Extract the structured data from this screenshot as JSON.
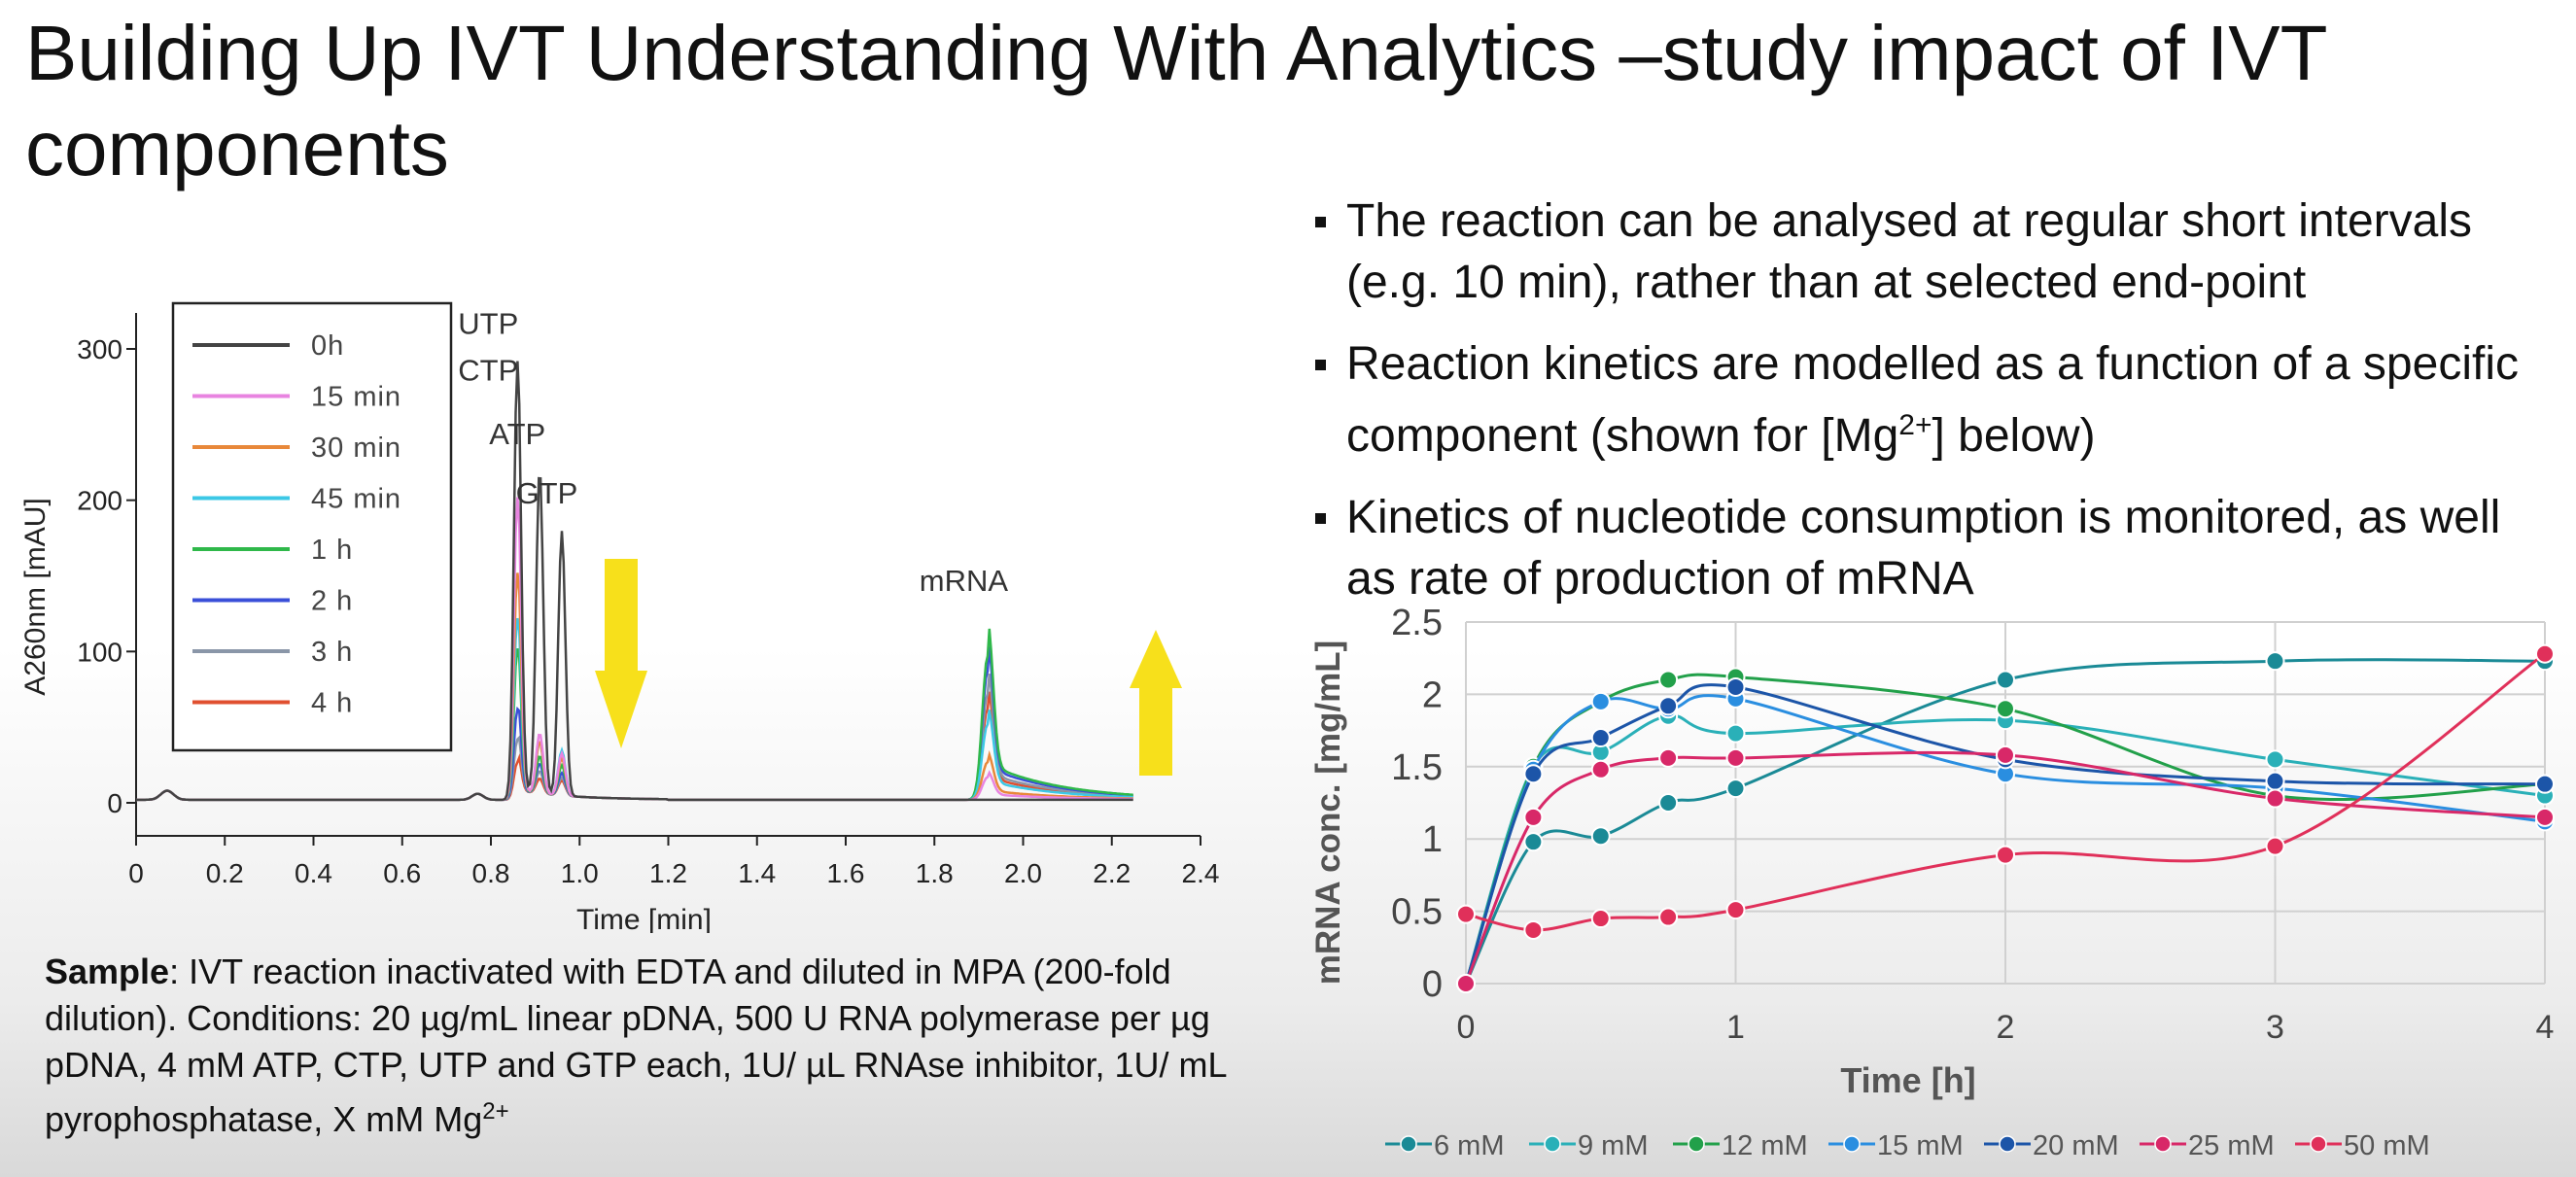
{
  "slide": {
    "title": "Building Up IVT Understanding With Analytics –study impact of IVT components",
    "bullets": [
      {
        "pre": "The reaction can be analysed at regular short intervals (e.g. 10 min), rather than at selected end-point",
        "sup": "",
        "post": ""
      },
      {
        "pre": "Reaction kinetics are modelled as a function of a specific component (shown for [Mg",
        "sup": "2+",
        "post": "] below)"
      },
      {
        "pre": "Kinetics of nucleotide consumption is monitored, as well as rate of production of mRNA",
        "sup": "",
        "post": ""
      }
    ],
    "sample": {
      "label": "Sample",
      "text": ": IVT reaction inactivated with EDTA and diluted in MPA (200-fold dilution). Conditions: 20 µg/mL linear pDNA, 500 U RNA polymerase  per µg pDNA, 4 mM ATP, CTP, UTP and GTP each, 1U/ µL RNAse inhibitor, 1U/ mL pyrophosphatase,  X mM Mg",
      "sup": "2+"
    },
    "colors": {
      "arrow": "#f7e01b"
    }
  },
  "chart_data": [
    {
      "type": "line",
      "xlabel": "Time [min]",
      "ylabel": "A260nm [mAU]",
      "xlim": [
        0,
        2.4
      ],
      "ylim": [
        0,
        300
      ],
      "x_ticks": [
        "0",
        "0.2",
        "0.4",
        "0.6",
        "0.8",
        "1.0",
        "1.2",
        "1.4",
        "1.6",
        "1.8",
        "2.0",
        "2.2",
        "2.4"
      ],
      "y_ticks": [
        "0",
        "100",
        "200",
        "300"
      ],
      "legend_position": "top-left",
      "peak_labels": [
        {
          "text": "UTP",
          "x": 0.84,
          "y": 310
        },
        {
          "text": "CTP",
          "x": 0.84,
          "y": 279
        },
        {
          "text": "ATP",
          "x": 0.91,
          "y": 237
        },
        {
          "text": "GTP",
          "x": 0.97,
          "y": 198
        },
        {
          "text": "mRNA",
          "x": 1.88,
          "y": 140
        }
      ],
      "series": [
        {
          "name": "0h",
          "color": "#444444",
          "peaks": [
            [
              0.86,
              290
            ],
            [
              0.91,
              215
            ],
            [
              0.96,
              175
            ],
            [
              1.92,
              0
            ]
          ]
        },
        {
          "name": "15 min",
          "color": "#e884e0",
          "peaks": [
            [
              0.86,
              200
            ],
            [
              0.91,
              40
            ],
            [
              0.96,
              28
            ],
            [
              1.92,
              15
            ]
          ]
        },
        {
          "name": "30 min",
          "color": "#e8883a",
          "peaks": [
            [
              0.86,
              150
            ],
            [
              0.91,
              35
            ],
            [
              0.96,
              25
            ],
            [
              1.92,
              25
            ]
          ]
        },
        {
          "name": "45 min",
          "color": "#3cc8e6",
          "peaks": [
            [
              0.86,
              120
            ],
            [
              0.91,
              35
            ],
            [
              0.96,
              30
            ],
            [
              1.92,
              50
            ]
          ]
        },
        {
          "name": "1 h",
          "color": "#2fb84a",
          "peaks": [
            [
              0.86,
              100
            ],
            [
              0.91,
              25
            ],
            [
              0.96,
              20
            ],
            [
              1.92,
              95
            ]
          ]
        },
        {
          "name": "2 h",
          "color": "#3a4fd8",
          "peaks": [
            [
              0.86,
              60
            ],
            [
              0.91,
              20
            ],
            [
              0.96,
              15
            ],
            [
              1.92,
              85
            ]
          ]
        },
        {
          "name": "3 h",
          "color": "#8a96a8",
          "peaks": [
            [
              0.86,
              40
            ],
            [
              0.91,
              15
            ],
            [
              0.96,
              12
            ],
            [
              1.92,
              70
            ]
          ]
        },
        {
          "name": "4 h",
          "color": "#e05030",
          "peaks": [
            [
              0.86,
              25
            ],
            [
              0.91,
              10
            ],
            [
              0.96,
              10
            ],
            [
              1.92,
              60
            ]
          ]
        }
      ]
    },
    {
      "type": "line",
      "xlabel": "Time [h]",
      "ylabel": "mRNA conc. [mg/mL]",
      "xlim": [
        0,
        4
      ],
      "ylim": [
        0,
        2.5
      ],
      "x_ticks": [
        "0",
        "1",
        "2",
        "3",
        "4"
      ],
      "y_ticks": [
        "0",
        "0.5",
        "1",
        "1.5",
        "2",
        "2.5"
      ],
      "grid": true,
      "legend_position": "bottom",
      "x": [
        0,
        0.25,
        0.5,
        0.75,
        1,
        2,
        3,
        4
      ],
      "series": [
        {
          "name": "6 mM",
          "color": "#1a8a96",
          "values": [
            0,
            0.98,
            1.02,
            1.25,
            1.35,
            2.1,
            2.23,
            2.23
          ]
        },
        {
          "name": "9 mM",
          "color": "#2ab0b8",
          "values": [
            0,
            1.5,
            1.6,
            1.85,
            1.73,
            1.82,
            1.55,
            1.3
          ]
        },
        {
          "name": "12 mM",
          "color": "#22a04a",
          "values": [
            0,
            1.5,
            1.95,
            2.1,
            2.12,
            1.9,
            1.3,
            1.38
          ]
        },
        {
          "name": "15 mM",
          "color": "#2a8ee0",
          "values": [
            0,
            1.48,
            1.95,
            1.9,
            1.97,
            1.45,
            1.35,
            1.12
          ]
        },
        {
          "name": "20 mM",
          "color": "#1c55a8",
          "values": [
            0,
            1.45,
            1.7,
            1.92,
            2.05,
            1.55,
            1.4,
            1.38
          ]
        },
        {
          "name": "25 mM",
          "color": "#d82868",
          "values": [
            0,
            1.15,
            1.48,
            1.56,
            1.56,
            1.58,
            1.28,
            1.15
          ]
        },
        {
          "name": "50 mM",
          "color": "#e0305a",
          "values": [
            0.48,
            0.37,
            0.45,
            0.46,
            0.51,
            0.89,
            0.95,
            2.28
          ]
        }
      ]
    }
  ]
}
